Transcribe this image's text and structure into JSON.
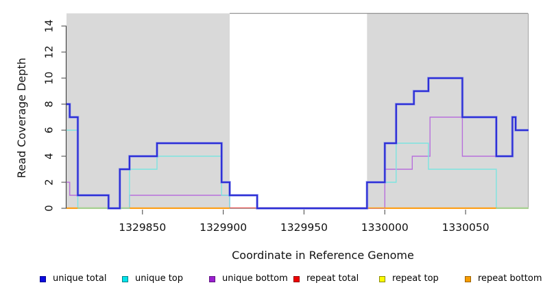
{
  "chart_data": {
    "type": "line",
    "subtype": "step",
    "title": "",
    "xlabel": "Coordinate in Reference Genome",
    "ylabel": "Read Coverage Depth",
    "xlim": [
      1329803,
      1330089
    ],
    "ylim": [
      0,
      15
    ],
    "grid": false,
    "x_ticks": [
      1329850,
      1329900,
      1329950,
      1330000,
      1330050
    ],
    "y_ticks": [
      0,
      2,
      4,
      6,
      8,
      10,
      12,
      14
    ],
    "shaded_regions": [
      [
        1329803,
        1329904
      ],
      [
        1329989,
        1330089
      ]
    ],
    "shade_color": "#d9d9d9",
    "top_rule_depth": 15,
    "top_rule_range": [
      1329904,
      1330089
    ],
    "series": [
      {
        "name": "repeat top",
        "color": "#f5f500",
        "width": 1.2,
        "steps": [
          [
            1329803,
            0
          ]
        ]
      },
      {
        "name": "repeat total",
        "color": "#e35555",
        "width": 1.2,
        "steps": [
          [
            1329803,
            0
          ]
        ]
      },
      {
        "name": "repeat bottom",
        "color": "#ff9d14",
        "width": 1.7,
        "steps": [
          [
            1329803,
            0
          ]
        ]
      },
      {
        "name": "unique bottom",
        "color": "#b76fdc",
        "width": 1.4,
        "steps": [
          [
            1329803,
            2
          ],
          [
            1329805,
            1
          ],
          [
            1329829,
            0
          ],
          [
            1329842,
            1
          ],
          [
            1329904,
            0
          ],
          [
            1330000,
            3
          ],
          [
            1330017,
            4
          ],
          [
            1330028,
            7
          ],
          [
            1330048,
            4
          ],
          [
            1330079,
            7
          ],
          [
            1330081,
            6
          ]
        ]
      },
      {
        "name": "unique top",
        "color": "#7ce4e0",
        "width": 1.4,
        "steps": [
          [
            1329803,
            6
          ],
          [
            1329810,
            0
          ],
          [
            1329842,
            3
          ],
          [
            1329859,
            4
          ],
          [
            1329899,
            1
          ],
          [
            1329904,
            0
          ],
          [
            1329989,
            2
          ],
          [
            1330007,
            5
          ],
          [
            1330027,
            3
          ],
          [
            1330069,
            0
          ]
        ]
      },
      {
        "name": "unique total",
        "color": "#2d2fd6",
        "halo": "#8890ec",
        "width": 2.3,
        "steps": [
          [
            1329803,
            8
          ],
          [
            1329805,
            7
          ],
          [
            1329810,
            1
          ],
          [
            1329829,
            0
          ],
          [
            1329836,
            3
          ],
          [
            1329842,
            4
          ],
          [
            1329859,
            5
          ],
          [
            1329899,
            2
          ],
          [
            1329904,
            1
          ],
          [
            1329921,
            0
          ],
          [
            1329989,
            2
          ],
          [
            1330000,
            5
          ],
          [
            1330007,
            8
          ],
          [
            1330018,
            9
          ],
          [
            1330027,
            10
          ],
          [
            1330048,
            7
          ],
          [
            1330069,
            4
          ],
          [
            1330079,
            7
          ],
          [
            1330081,
            6
          ]
        ]
      }
    ],
    "zero_line_overlays": [
      {
        "color": "#e35555",
        "from": 1329904,
        "to": 1329989
      },
      {
        "color": "#ff9d14",
        "from": 1329803,
        "to": 1329829
      },
      {
        "color": "#ff9d14",
        "from": 1329836,
        "to": 1329904
      },
      {
        "color": "#ff9d14",
        "from": 1329989,
        "to": 1330089
      },
      {
        "color": "#97d9a0",
        "from": 1329810,
        "to": 1329842
      },
      {
        "color": "#97d9a0",
        "from": 1330069,
        "to": 1330089
      }
    ],
    "legend_position": "bottom"
  },
  "axes": {
    "x_label": "Coordinate in Reference Genome",
    "y_label": "Read Coverage Depth"
  },
  "legend": {
    "items": [
      {
        "label": "unique total",
        "fill": "#0b0bdf",
        "border": "#000090"
      },
      {
        "label": "unique top",
        "fill": "#00e3ea",
        "border": "#007f86"
      },
      {
        "label": "unique bottom",
        "fill": "#9b1fd0",
        "border": "#5e1380"
      },
      {
        "label": "repeat total",
        "fill": "#f00000",
        "border": "#8f0000"
      },
      {
        "label": "repeat top",
        "fill": "#fbfb00",
        "border": "#8a8a00"
      },
      {
        "label": "repeat bottom",
        "fill": "#f79c00",
        "border": "#9c6200"
      }
    ]
  }
}
